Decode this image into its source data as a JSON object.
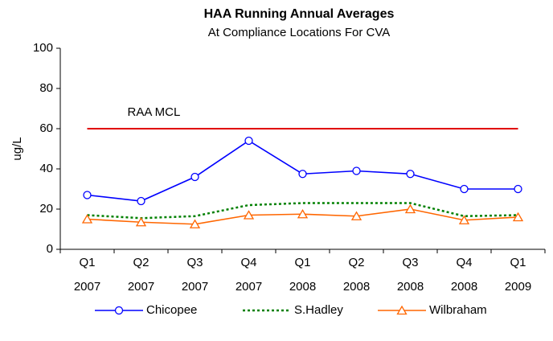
{
  "chart_data": {
    "type": "line",
    "title": "HAA Running Annual Averages",
    "subtitle": "At Compliance Locations For CVA",
    "y_label": "ug/L",
    "categories": [
      [
        "Q1",
        "2007"
      ],
      [
        "Q2",
        "2007"
      ],
      [
        "Q3",
        "2007"
      ],
      [
        "Q4",
        "2007"
      ],
      [
        "Q1",
        "2008"
      ],
      [
        "Q2",
        "2008"
      ],
      [
        "Q3",
        "2008"
      ],
      [
        "Q4",
        "2008"
      ],
      [
        "Q1",
        "2009"
      ]
    ],
    "series": [
      {
        "name": "Chicopee",
        "color": "#0000ff",
        "marker": "circle",
        "dash": "solid",
        "values": [
          27,
          24,
          36,
          54,
          37.5,
          39,
          37.5,
          30,
          30
        ]
      },
      {
        "name": "S.Hadley",
        "color": "#008000",
        "marker": "none",
        "dash": "dotted",
        "values": [
          17,
          15.5,
          16.5,
          22,
          23,
          23,
          23,
          16.5,
          17
        ]
      },
      {
        "name": "Wilbraham",
        "color": "#ff6600",
        "marker": "triangle",
        "dash": "solid",
        "values": [
          15,
          13.5,
          12.5,
          17,
          17.5,
          16.5,
          20,
          14.5,
          16
        ]
      }
    ],
    "reference_line": {
      "value": 60,
      "label": "RAA MCL",
      "color": "#e00000"
    },
    "ylim": [
      0,
      100
    ],
    "yticks": [
      0,
      20,
      40,
      60,
      80,
      100
    ],
    "grid": false
  }
}
